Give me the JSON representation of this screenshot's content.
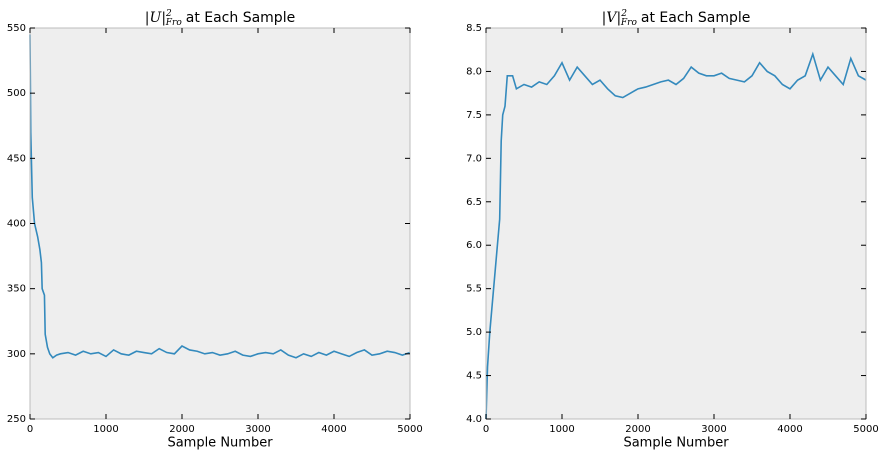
{
  "chart_data": [
    {
      "type": "line",
      "title_symbol": "|U|",
      "title_sub": "Fro",
      "title_sup": "2",
      "title": "at Each Sample",
      "xlabel": "Sample Number",
      "color": "#348abd",
      "x": [
        0,
        10,
        30,
        60,
        100,
        130,
        150,
        160,
        190,
        200,
        230,
        260,
        300,
        350,
        400,
        500,
        600,
        700,
        800,
        900,
        1000,
        1100,
        1200,
        1300,
        1400,
        1500,
        1600,
        1700,
        1800,
        1900,
        2000,
        2100,
        2200,
        2300,
        2400,
        2500,
        2600,
        2700,
        2800,
        2900,
        3000,
        3100,
        3200,
        3300,
        3400,
        3500,
        3600,
        3700,
        3800,
        3900,
        4000,
        4100,
        4200,
        4300,
        4400,
        4500,
        4600,
        4700,
        4800,
        4900,
        5000
      ],
      "values": [
        545,
        470,
        420,
        400,
        390,
        380,
        370,
        350,
        345,
        315,
        305,
        300,
        297,
        299,
        300,
        301,
        299,
        302,
        300,
        301,
        298,
        303,
        300,
        299,
        302,
        301,
        300,
        304,
        301,
        300,
        306,
        303,
        302,
        300,
        301,
        299,
        300,
        302,
        299,
        298,
        300,
        301,
        300,
        303,
        299,
        297,
        300,
        298,
        301,
        299,
        302,
        300,
        298,
        301,
        303,
        299,
        300,
        302,
        301,
        299,
        301
      ],
      "xlim": [
        0,
        5000
      ],
      "xticks": [
        0,
        1000,
        2000,
        3000,
        4000,
        5000
      ],
      "ylim": [
        250,
        550
      ],
      "yticks": [
        250,
        300,
        350,
        400,
        450,
        500,
        550
      ]
    },
    {
      "type": "line",
      "title_symbol": "|V|",
      "title_sub": "Fro",
      "title_sup": "2",
      "title": "at Each Sample",
      "xlabel": "Sample Number",
      "color": "#348abd",
      "x": [
        0,
        20,
        50,
        100,
        150,
        180,
        200,
        220,
        250,
        280,
        350,
        400,
        500,
        600,
        700,
        800,
        900,
        1000,
        1100,
        1200,
        1300,
        1400,
        1500,
        1600,
        1700,
        1800,
        1900,
        2000,
        2100,
        2200,
        2300,
        2400,
        2500,
        2600,
        2700,
        2800,
        2900,
        3000,
        3100,
        3200,
        3300,
        3400,
        3500,
        3600,
        3700,
        3800,
        3900,
        4000,
        4100,
        4200,
        4300,
        4400,
        4500,
        4600,
        4700,
        4800,
        4900,
        5000
      ],
      "values": [
        4.0,
        4.6,
        5.0,
        5.5,
        6.0,
        6.3,
        7.2,
        7.5,
        7.6,
        7.95,
        7.95,
        7.8,
        7.85,
        7.82,
        7.88,
        7.85,
        7.95,
        8.1,
        7.9,
        8.05,
        7.95,
        7.85,
        7.9,
        7.8,
        7.72,
        7.7,
        7.75,
        7.8,
        7.82,
        7.85,
        7.88,
        7.9,
        7.85,
        7.92,
        8.05,
        7.98,
        7.95,
        7.95,
        7.98,
        7.92,
        7.9,
        7.88,
        7.95,
        8.1,
        8.0,
        7.95,
        7.85,
        7.8,
        7.9,
        7.95,
        8.2,
        7.9,
        8.05,
        7.95,
        7.85,
        8.15,
        7.95,
        7.9
      ],
      "xlim": [
        0,
        5000
      ],
      "xticks": [
        0,
        1000,
        2000,
        3000,
        4000,
        5000
      ],
      "ylim": [
        4.0,
        8.5
      ],
      "yticks": [
        {
          "value": 4,
          "label": "4.0"
        },
        4.5,
        {
          "value": 5,
          "label": "5.0"
        },
        5.5,
        {
          "value": 6,
          "label": "6.0"
        },
        6.5,
        {
          "value": 7,
          "label": "7.0"
        },
        7.5,
        {
          "value": 8,
          "label": "8.0"
        },
        8.5
      ]
    }
  ]
}
